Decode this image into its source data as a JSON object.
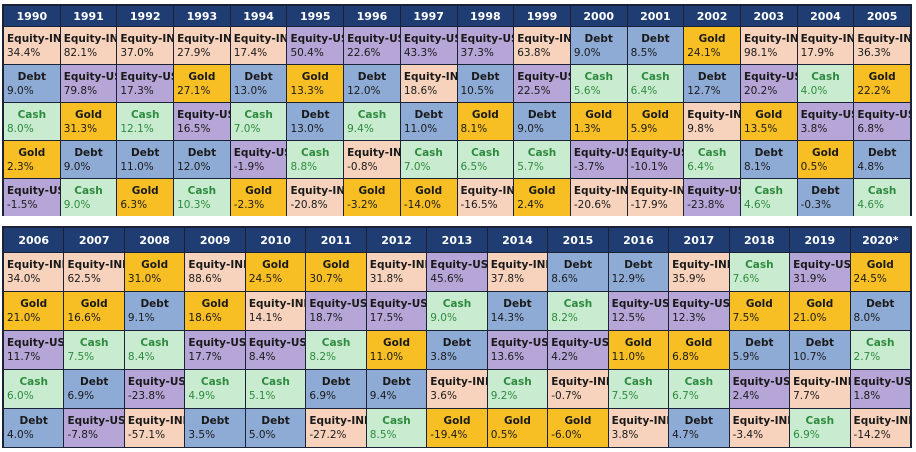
{
  "colors": {
    "Equity-IND": {
      "bg": "#f7d3bd",
      "name": "#1a1a1a",
      "value": "#1a1a1a"
    },
    "Equity-US": {
      "bg": "#b6a5d7",
      "name": "#1a1a1a",
      "value": "#1a1a1a"
    },
    "Debt": {
      "bg": "#8eabd6",
      "name": "#1a1a1a",
      "value": "#1a1a1a"
    },
    "Gold": {
      "bg": "#f8bf24",
      "name": "#1a1a1a",
      "value": "#1a1a1a"
    },
    "Cash": {
      "bg": "#c9ecd0",
      "name": "#2e8a3e",
      "value": "#2e8a3e"
    }
  },
  "chart_data": [
    {
      "type": "table",
      "years": [
        "1990",
        "1991",
        "1992",
        "1993",
        "1994",
        "1995",
        "1996",
        "1997",
        "1998",
        "1999",
        "2000",
        "2001",
        "2002",
        "2003",
        "2004",
        "2005"
      ],
      "rows": [
        [
          {
            "a": "Equity-IND",
            "v": "34.4%"
          },
          {
            "a": "Equity-IND",
            "v": "82.1%"
          },
          {
            "a": "Equity-IND",
            "v": "37.0%"
          },
          {
            "a": "Equity-IND",
            "v": "27.9%"
          },
          {
            "a": "Equity-IND",
            "v": "17.4%"
          },
          {
            "a": "Equity-US",
            "v": "50.4%"
          },
          {
            "a": "Equity-US",
            "v": "22.6%"
          },
          {
            "a": "Equity-US",
            "v": "43.3%"
          },
          {
            "a": "Equity-US",
            "v": "37.3%"
          },
          {
            "a": "Equity-IND",
            "v": "63.8%"
          },
          {
            "a": "Debt",
            "v": "9.0%"
          },
          {
            "a": "Debt",
            "v": "8.5%"
          },
          {
            "a": "Gold",
            "v": "24.1%"
          },
          {
            "a": "Equity-IND",
            "v": "98.1%"
          },
          {
            "a": "Equity-IND",
            "v": "17.9%"
          },
          {
            "a": "Equity-IND",
            "v": "36.3%"
          }
        ],
        [
          {
            "a": "Debt",
            "v": "9.0%"
          },
          {
            "a": "Equity-US",
            "v": "79.8%"
          },
          {
            "a": "Equity-US",
            "v": "17.3%"
          },
          {
            "a": "Gold",
            "v": "27.1%"
          },
          {
            "a": "Debt",
            "v": "13.0%"
          },
          {
            "a": "Gold",
            "v": "13.3%"
          },
          {
            "a": "Debt",
            "v": "12.0%"
          },
          {
            "a": "Equity-IND",
            "v": "18.6%"
          },
          {
            "a": "Debt",
            "v": "10.5%"
          },
          {
            "a": "Equity-US",
            "v": "22.5%"
          },
          {
            "a": "Cash",
            "v": "5.6%"
          },
          {
            "a": "Cash",
            "v": "6.4%"
          },
          {
            "a": "Debt",
            "v": "12.7%"
          },
          {
            "a": "Equity-US",
            "v": "20.2%"
          },
          {
            "a": "Cash",
            "v": "4.0%"
          },
          {
            "a": "Gold",
            "v": "22.2%"
          }
        ],
        [
          {
            "a": "Cash",
            "v": "8.0%"
          },
          {
            "a": "Gold",
            "v": "31.3%"
          },
          {
            "a": "Cash",
            "v": "12.1%"
          },
          {
            "a": "Equity-US",
            "v": "16.5%"
          },
          {
            "a": "Cash",
            "v": "7.0%"
          },
          {
            "a": "Debt",
            "v": "13.0%"
          },
          {
            "a": "Cash",
            "v": "9.4%"
          },
          {
            "a": "Debt",
            "v": "11.0%"
          },
          {
            "a": "Gold",
            "v": "8.1%"
          },
          {
            "a": "Debt",
            "v": "9.0%"
          },
          {
            "a": "Gold",
            "v": "1.3%"
          },
          {
            "a": "Gold",
            "v": "5.9%"
          },
          {
            "a": "Equity-IND",
            "v": "9.8%"
          },
          {
            "a": "Gold",
            "v": "13.5%"
          },
          {
            "a": "Equity-US",
            "v": "3.8%"
          },
          {
            "a": "Equity-US",
            "v": "6.8%"
          }
        ],
        [
          {
            "a": "Gold",
            "v": "2.3%"
          },
          {
            "a": "Debt",
            "v": "9.0%"
          },
          {
            "a": "Debt",
            "v": "11.0%"
          },
          {
            "a": "Debt",
            "v": "12.0%"
          },
          {
            "a": "Equity-US",
            "v": "-1.9%"
          },
          {
            "a": "Cash",
            "v": "8.8%"
          },
          {
            "a": "Equity-IND",
            "v": "-0.8%"
          },
          {
            "a": "Cash",
            "v": "7.0%"
          },
          {
            "a": "Cash",
            "v": "6.5%"
          },
          {
            "a": "Cash",
            "v": "5.7%"
          },
          {
            "a": "Equity-US",
            "v": "-3.7%"
          },
          {
            "a": "Equity-US",
            "v": "-10.1%"
          },
          {
            "a": "Cash",
            "v": "6.4%"
          },
          {
            "a": "Debt",
            "v": "8.1%"
          },
          {
            "a": "Gold",
            "v": "0.5%"
          },
          {
            "a": "Debt",
            "v": "4.8%"
          }
        ],
        [
          {
            "a": "Equity-US",
            "v": "-1.5%"
          },
          {
            "a": "Cash",
            "v": "9.0%"
          },
          {
            "a": "Gold",
            "v": "6.3%"
          },
          {
            "a": "Cash",
            "v": "10.3%"
          },
          {
            "a": "Gold",
            "v": "-2.3%"
          },
          {
            "a": "Equity-IND",
            "v": "-20.8%"
          },
          {
            "a": "Gold",
            "v": "-3.2%"
          },
          {
            "a": "Gold",
            "v": "-14.0%"
          },
          {
            "a": "Equity-IND",
            "v": "-16.5%"
          },
          {
            "a": "Gold",
            "v": "2.4%"
          },
          {
            "a": "Equity-IND",
            "v": "-20.6%"
          },
          {
            "a": "Equity-IND",
            "v": "-17.9%"
          },
          {
            "a": "Equity-US",
            "v": "-23.8%"
          },
          {
            "a": "Cash",
            "v": "4.6%"
          },
          {
            "a": "Debt",
            "v": "-0.3%"
          },
          {
            "a": "Cash",
            "v": "4.6%"
          }
        ]
      ]
    },
    {
      "type": "table",
      "years": [
        "2006",
        "2007",
        "2008",
        "2009",
        "2010",
        "2011",
        "2012",
        "2013",
        "2014",
        "2015",
        "2016",
        "2017",
        "2018",
        "2019",
        "2020*"
      ],
      "rows": [
        [
          {
            "a": "Equity-IND",
            "v": "34.0%"
          },
          {
            "a": "Equity-IND",
            "v": "62.5%"
          },
          {
            "a": "Gold",
            "v": "31.0%"
          },
          {
            "a": "Equity-IND",
            "v": "88.6%"
          },
          {
            "a": "Gold",
            "v": "24.5%"
          },
          {
            "a": "Gold",
            "v": "30.7%"
          },
          {
            "a": "Equity-IND",
            "v": "31.8%"
          },
          {
            "a": "Equity-US",
            "v": "45.6%"
          },
          {
            "a": "Equity-IND",
            "v": "37.8%"
          },
          {
            "a": "Debt",
            "v": "8.6%"
          },
          {
            "a": "Debt",
            "v": "12.9%"
          },
          {
            "a": "Equity-IND",
            "v": "35.9%"
          },
          {
            "a": "Cash",
            "v": "7.6%"
          },
          {
            "a": "Equity-US",
            "v": "31.9%"
          },
          {
            "a": "Gold",
            "v": "24.5%"
          }
        ],
        [
          {
            "a": "Gold",
            "v": "21.0%"
          },
          {
            "a": "Gold",
            "v": "16.6%"
          },
          {
            "a": "Debt",
            "v": "9.1%"
          },
          {
            "a": "Gold",
            "v": "18.6%"
          },
          {
            "a": "Equity-IND",
            "v": "14.1%"
          },
          {
            "a": "Equity-US",
            "v": "18.7%"
          },
          {
            "a": "Equity-US",
            "v": "17.5%"
          },
          {
            "a": "Cash",
            "v": "9.0%"
          },
          {
            "a": "Debt",
            "v": "14.3%"
          },
          {
            "a": "Cash",
            "v": "8.2%"
          },
          {
            "a": "Equity-US",
            "v": "12.5%"
          },
          {
            "a": "Equity-US",
            "v": "12.3%"
          },
          {
            "a": "Gold",
            "v": "7.5%"
          },
          {
            "a": "Gold",
            "v": "21.0%"
          },
          {
            "a": "Debt",
            "v": "8.0%"
          }
        ],
        [
          {
            "a": "Equity-US",
            "v": "11.7%"
          },
          {
            "a": "Cash",
            "v": "7.5%"
          },
          {
            "a": "Cash",
            "v": "8.4%"
          },
          {
            "a": "Equity-US",
            "v": "17.7%"
          },
          {
            "a": "Equity-US",
            "v": "8.4%"
          },
          {
            "a": "Cash",
            "v": "8.2%"
          },
          {
            "a": "Gold",
            "v": "11.0%"
          },
          {
            "a": "Debt",
            "v": "3.8%"
          },
          {
            "a": "Equity-US",
            "v": "13.6%"
          },
          {
            "a": "Equity-US",
            "v": "4.2%"
          },
          {
            "a": "Gold",
            "v": "11.0%"
          },
          {
            "a": "Gold",
            "v": "6.8%"
          },
          {
            "a": "Debt",
            "v": "5.9%"
          },
          {
            "a": "Debt",
            "v": "10.7%"
          },
          {
            "a": "Cash",
            "v": "2.7%"
          }
        ],
        [
          {
            "a": "Cash",
            "v": "6.0%"
          },
          {
            "a": "Debt",
            "v": "6.9%"
          },
          {
            "a": "Equity-US",
            "v": "-23.8%"
          },
          {
            "a": "Cash",
            "v": "4.9%"
          },
          {
            "a": "Cash",
            "v": "5.1%"
          },
          {
            "a": "Debt",
            "v": "6.9%"
          },
          {
            "a": "Debt",
            "v": "9.4%"
          },
          {
            "a": "Equity-IND",
            "v": "3.6%"
          },
          {
            "a": "Cash",
            "v": "9.2%"
          },
          {
            "a": "Equity-IND",
            "v": "-0.7%"
          },
          {
            "a": "Cash",
            "v": "7.5%"
          },
          {
            "a": "Cash",
            "v": "6.7%"
          },
          {
            "a": "Equity-US",
            "v": "2.4%"
          },
          {
            "a": "Equity-IND",
            "v": "7.7%"
          },
          {
            "a": "Equity-US",
            "v": "1.8%"
          }
        ],
        [
          {
            "a": "Debt",
            "v": "4.0%"
          },
          {
            "a": "Equity-US",
            "v": "-7.8%"
          },
          {
            "a": "Equity-IND",
            "v": "-57.1%"
          },
          {
            "a": "Debt",
            "v": "3.5%"
          },
          {
            "a": "Debt",
            "v": "5.0%"
          },
          {
            "a": "Equity-IND",
            "v": "-27.2%"
          },
          {
            "a": "Cash",
            "v": "8.5%"
          },
          {
            "a": "Gold",
            "v": "-19.4%"
          },
          {
            "a": "Gold",
            "v": "0.5%"
          },
          {
            "a": "Gold",
            "v": "-6.0%"
          },
          {
            "a": "Equity-IND",
            "v": "3.8%"
          },
          {
            "a": "Debt",
            "v": "4.7%"
          },
          {
            "a": "Equity-IND",
            "v": "-3.4%"
          },
          {
            "a": "Cash",
            "v": "6.9%"
          },
          {
            "a": "Equity-IND",
            "v": "-14.2%"
          }
        ]
      ]
    }
  ]
}
